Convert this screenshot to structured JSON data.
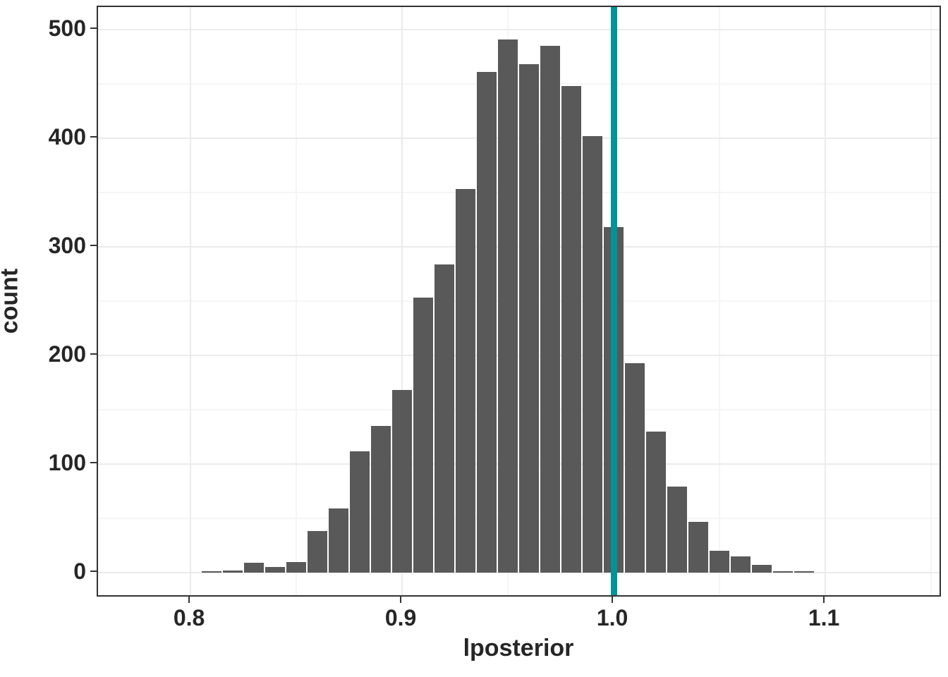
{
  "chart_data": {
    "type": "bar",
    "subtype": "histogram",
    "title": "",
    "xlabel": "lposterior",
    "ylabel": "count",
    "xlim": [
      0.7563,
      1.1553
    ],
    "ylim": [
      -23.4,
      520.8
    ],
    "x_major_ticks": [
      0.8,
      0.9,
      1.0,
      1.1
    ],
    "x_tick_labels": [
      "0.8",
      "0.9",
      "1.0",
      "1.1"
    ],
    "y_major_ticks": [
      0,
      100,
      200,
      300,
      400,
      500
    ],
    "y_tick_labels": [
      "0",
      "100",
      "200",
      "300",
      "400",
      "500"
    ],
    "x_minor_gridlines": [
      0.85,
      0.95,
      1.05,
      1.15
    ],
    "y_minor_gridlines": [
      50,
      150,
      250,
      350,
      450
    ],
    "grid": true,
    "legend_position": "none",
    "binwidth": 0.01,
    "bin_centers": [
      0.81,
      0.82,
      0.83,
      0.84,
      0.85,
      0.86,
      0.87,
      0.88,
      0.89,
      0.9,
      0.91,
      0.92,
      0.93,
      0.94,
      0.95,
      0.96,
      0.97,
      0.98,
      0.99,
      1.0,
      1.01,
      1.02,
      1.03,
      1.04,
      1.05,
      1.06,
      1.07,
      1.08,
      1.09
    ],
    "counts": [
      1,
      2,
      9,
      5,
      10,
      38,
      59,
      112,
      135,
      168,
      253,
      284,
      353,
      461,
      491,
      468,
      485,
      448,
      402,
      318,
      193,
      130,
      79,
      47,
      20,
      15,
      7,
      1,
      1
    ],
    "reference_line": {
      "orientation": "vertical",
      "x": 1.0,
      "stroke_px": 9,
      "color": "#009496"
    },
    "colors": {
      "bar_fill": "#595959",
      "panel_border": "#333333",
      "grid_major": "#ebebeb",
      "grid_minor": "#f5f5f5",
      "axis_text": "#262626",
      "background": "#ffffff"
    }
  }
}
